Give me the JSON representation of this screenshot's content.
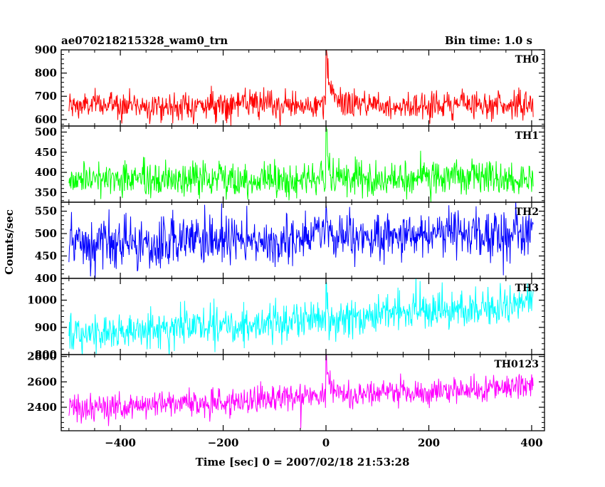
{
  "header": {
    "title": "ae070218215328_wam0_trn",
    "bin_time": "Bin time: 1.0 s"
  },
  "chart_data": {
    "type": "line",
    "title": "ae070218215328_wam0_trn",
    "xlabel": "Time [sec] 0 = 2007/02/18 21:53:28",
    "ylabel": "Counts/sec",
    "xlim": [
      -515,
      425
    ],
    "x_ticks": [
      -400,
      -200,
      0,
      200,
      400
    ],
    "x_tick_labels": [
      "−400",
      "−200",
      "0",
      "200",
      "400"
    ],
    "x_range": [
      -500,
      403
    ],
    "bin": 1.0,
    "grid": false,
    "legend": "none",
    "panels": [
      {
        "name": "TH0",
        "color": "#ff0000",
        "ylim": [
          572,
          900
        ],
        "y_ticks": [
          600,
          700,
          800,
          900
        ],
        "y_tick_labels": [
          "600",
          "700",
          "800",
          "900"
        ],
        "series_shape": {
          "baseline_start": 660,
          "baseline_end": 665,
          "noise": 30,
          "burst_peak": 890,
          "burst_decay_sec": 8,
          "spike_max": 900
        }
      },
      {
        "name": "TH1",
        "color": "#00ff00",
        "ylim": [
          326,
          515
        ],
        "y_ticks": [
          350,
          400,
          450,
          500
        ],
        "y_tick_labels": [
          "350",
          "400",
          "450",
          "500"
        ],
        "series_shape": {
          "baseline_start": 382,
          "baseline_end": 385,
          "noise": 22,
          "burst_peak": 500,
          "burst_decay_sec": 4,
          "spike_max": 515
        }
      },
      {
        "name": "TH2",
        "color": "#0000ff",
        "ylim": [
          400,
          570
        ],
        "y_ticks": [
          400,
          450,
          500,
          550
        ],
        "y_tick_labels": [
          "400",
          "450",
          "500",
          "550"
        ],
        "series_shape": {
          "baseline_start": 470,
          "baseline_end": 505,
          "noise": 28,
          "burst_peak": 520,
          "burst_decay_sec": 6,
          "spike_max": 568
        }
      },
      {
        "name": "TH3",
        "color": "#00ffff",
        "ylim": [
          800,
          1080
        ],
        "y_ticks": [
          800,
          900,
          1000
        ],
        "y_tick_labels": [
          "800",
          "900",
          "1000"
        ],
        "series_shape": {
          "baseline_start": 870,
          "baseline_end": 985,
          "noise": 35,
          "burst_peak": 970,
          "burst_decay_sec": 5,
          "spike_max": 1075
        }
      },
      {
        "name": "TH0123",
        "color": "#ff00ff",
        "ylim": [
          2215,
          2815
        ],
        "y_ticks": [
          2400,
          2600,
          2800
        ],
        "y_tick_labels": [
          "2400",
          "2600",
          "2800"
        ],
        "series_shape": {
          "baseline_start": 2390,
          "baseline_end": 2560,
          "noise": 55,
          "burst_peak": 2790,
          "burst_decay_sec": 12,
          "spike_max": 2815
        }
      }
    ]
  }
}
